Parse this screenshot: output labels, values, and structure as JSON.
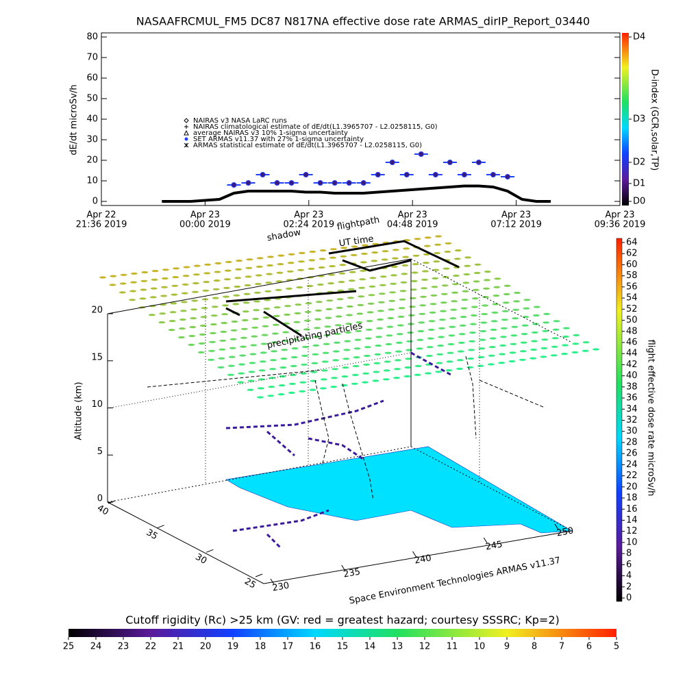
{
  "chart_data": [
    {
      "type": "line",
      "title": "NASAAFRCMUL_FM5 DC87 N817NA effective dose rate ARMAS_dirIP_Report_03440",
      "ylabel": "dE/dt microSv/h",
      "xlim": [
        "2019-04-22T21:36",
        "2019-04-23T09:36"
      ],
      "xticks": [
        {
          "value": "2019-04-22T21:36",
          "label": [
            "Apr 22",
            "21:36 2019"
          ]
        },
        {
          "value": "2019-04-23T00:00",
          "label": [
            "Apr 23",
            "00:00 2019"
          ]
        },
        {
          "value": "2019-04-23T02:24",
          "label": [
            "Apr 23",
            "02:24 2019"
          ]
        },
        {
          "value": "2019-04-23T04:48",
          "label": [
            "Apr 23",
            "04:48 2019"
          ]
        },
        {
          "value": "2019-04-23T07:12",
          "label": [
            "Apr 23",
            "07:12 2019"
          ]
        },
        {
          "value": "2019-04-23T09:36",
          "label": [
            "Apr 23",
            "09:36 2019"
          ]
        }
      ],
      "ylim": [
        -2,
        82
      ],
      "yticks": [
        0,
        10,
        20,
        30,
        40,
        50,
        60,
        70,
        80
      ],
      "x": [
        "2019-04-22T23:00",
        "2019-04-22T23:20",
        "2019-04-22T23:40",
        "2019-04-23T00:00",
        "2019-04-23T00:20",
        "2019-04-23T00:40",
        "2019-04-23T01:00",
        "2019-04-23T01:20",
        "2019-04-23T01:40",
        "2019-04-23T02:00",
        "2019-04-23T02:20",
        "2019-04-23T02:40",
        "2019-04-23T03:00",
        "2019-04-23T03:20",
        "2019-04-23T03:40",
        "2019-04-23T04:00",
        "2019-04-23T04:20",
        "2019-04-23T04:40",
        "2019-04-23T05:00",
        "2019-04-23T05:20",
        "2019-04-23T05:40",
        "2019-04-23T06:00",
        "2019-04-23T06:20",
        "2019-04-23T06:40",
        "2019-04-23T07:00",
        "2019-04-23T07:20",
        "2019-04-23T07:40",
        "2019-04-23T08:00"
      ],
      "series": [
        {
          "name": "NAIRAS climatological estimate of dE/dt(L1.3965707 - L2.0258115, G0)",
          "color": "#000000",
          "values": [
            0,
            0,
            0,
            0.5,
            1,
            4,
            5,
            5,
            5,
            5,
            4.5,
            4.5,
            4,
            4,
            4,
            4.5,
            5,
            5.5,
            6,
            6.5,
            7,
            7.5,
            7.5,
            7,
            5,
            1,
            0,
            0
          ]
        },
        {
          "name": "SET ARMAS v11.37 with 27% 1-sigma uncertainty",
          "color": "#3b1a7a",
          "values": [
            null,
            null,
            null,
            null,
            null,
            8,
            9,
            13,
            9,
            9,
            13,
            9,
            9,
            9,
            9,
            13,
            19,
            13,
            23,
            13,
            19,
            13,
            19,
            13,
            12,
            null,
            null,
            null
          ]
        }
      ],
      "legend_extra": [
        "NAIRAS v3 NASA LaRC runs",
        "average NAIRAS v3 10% 1-sigma uncertainty",
        "ARMAS statistical estimate of dE/dt(L1.3965707 - L2.0258115, G0)"
      ],
      "colorbar": {
        "label": "D-index (GCR,solar,TP)",
        "ticks": [
          {
            "value": 0,
            "label": "D0"
          },
          {
            "value": 8.7,
            "label": "D1"
          },
          {
            "value": 19,
            "label": "D2"
          },
          {
            "value": 40,
            "label": "D3"
          },
          {
            "value": 80,
            "label": "D4"
          }
        ]
      }
    },
    {
      "type": "scatter3d",
      "annotations": [
        "shadow",
        "flightpath",
        "UT time",
        "precipitating particles"
      ],
      "zlabel": "Altitude (km)",
      "zlim": [
        0,
        20
      ],
      "zticks": [
        0,
        5,
        10,
        15,
        20
      ],
      "latlim": [
        40,
        25
      ],
      "latticks": [
        40,
        35,
        30,
        25
      ],
      "lonlim": [
        230,
        250
      ],
      "lonticks": [
        230,
        235,
        240,
        245,
        250
      ],
      "credit": "Space Environment Technologies ARMAS v11.37",
      "colorbar": {
        "label": "flight effective dose rate microSv/h",
        "lim": [
          0,
          64
        ],
        "ticks": [
          0,
          2,
          4,
          6,
          8,
          10,
          12,
          14,
          16,
          18,
          20,
          22,
          24,
          26,
          28,
          30,
          32,
          34,
          36,
          38,
          40,
          42,
          44,
          46,
          48,
          50,
          52,
          54,
          56,
          58,
          60,
          62,
          64
        ]
      },
      "rigidity_bar": {
        "title": "Cutoff rigidity (Rc) >25 km (GV: red = greatest hazard; courtesy SSSRC; Kp=2)",
        "lim": [
          25,
          5
        ],
        "ticks": [
          25,
          24,
          23,
          22,
          21,
          20,
          19,
          18,
          17,
          16,
          15,
          14,
          13,
          12,
          11,
          10,
          9,
          8,
          7,
          6,
          5
        ]
      }
    }
  ]
}
